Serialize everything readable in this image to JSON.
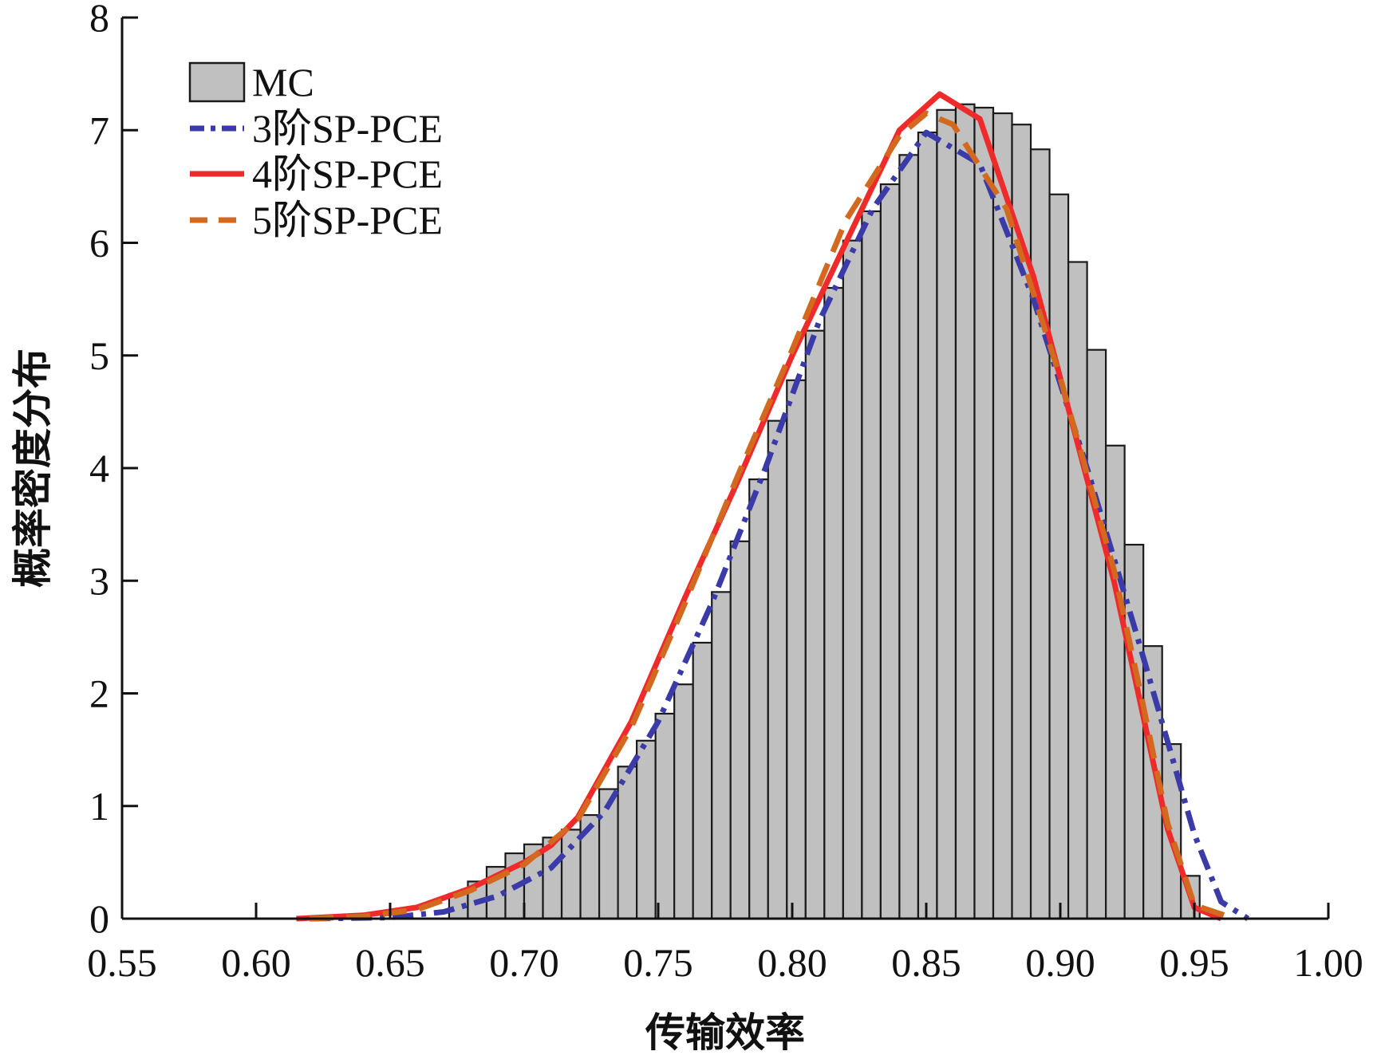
{
  "chart_data": {
    "type": "bar",
    "title": "",
    "xlabel": "传输效率",
    "ylabel": "概率密度分布",
    "xlim": [
      0.55,
      1.0
    ],
    "ylim": [
      0,
      8
    ],
    "xticks": [
      "0.55",
      "0.60",
      "0.65",
      "0.70",
      "0.75",
      "0.80",
      "0.85",
      "0.90",
      "0.95",
      "1.00"
    ],
    "xtick_values": [
      0.55,
      0.6,
      0.65,
      0.7,
      0.75,
      0.8,
      0.85,
      0.9,
      0.95,
      1.0
    ],
    "yticks": [
      "0",
      "1",
      "2",
      "3",
      "4",
      "5",
      "6",
      "7",
      "8"
    ],
    "ytick_values": [
      0,
      1,
      2,
      3,
      4,
      5,
      6,
      7,
      8
    ],
    "grid": false,
    "legend_position": "top-left",
    "histogram": {
      "name": "MC",
      "bin_width": 0.007,
      "color": "#c0c0c0",
      "bin_starts": [
        0.672,
        0.679,
        0.686,
        0.693,
        0.7,
        0.707,
        0.714,
        0.721,
        0.728,
        0.735,
        0.742,
        0.749,
        0.756,
        0.763,
        0.77,
        0.777,
        0.784,
        0.791,
        0.798,
        0.805,
        0.812,
        0.819,
        0.826,
        0.833,
        0.84,
        0.847,
        0.854,
        0.861,
        0.868,
        0.875,
        0.882,
        0.889,
        0.896,
        0.903,
        0.91,
        0.917,
        0.924,
        0.931,
        0.938,
        0.945
      ],
      "values": [
        0.22,
        0.33,
        0.46,
        0.58,
        0.66,
        0.72,
        0.79,
        0.92,
        1.15,
        1.35,
        1.58,
        1.82,
        2.08,
        2.45,
        2.9,
        3.35,
        3.9,
        4.42,
        4.78,
        5.22,
        5.6,
        6.02,
        6.28,
        6.52,
        6.78,
        6.98,
        7.18,
        7.23,
        7.2,
        7.15,
        7.05,
        6.83,
        6.43,
        5.83,
        5.05,
        4.2,
        3.32,
        2.42,
        1.55,
        0.38
      ]
    },
    "series": [
      {
        "name": "3阶SP-PCE",
        "color": "#3a3aa8",
        "style": "dash-dot",
        "x": [
          0.62,
          0.65,
          0.67,
          0.69,
          0.71,
          0.73,
          0.75,
          0.77,
          0.79,
          0.81,
          0.83,
          0.85,
          0.87,
          0.89,
          0.91,
          0.93,
          0.95,
          0.96,
          0.97
        ],
        "y": [
          0.0,
          0.01,
          0.06,
          0.2,
          0.45,
          0.95,
          1.75,
          2.8,
          4.0,
          5.3,
          6.3,
          6.98,
          6.7,
          5.5,
          4.0,
          2.4,
          0.75,
          0.15,
          0.0
        ]
      },
      {
        "name": "4阶SP-PCE",
        "color": "#ee2a2a",
        "style": "solid",
        "x": [
          0.615,
          0.64,
          0.66,
          0.68,
          0.7,
          0.71,
          0.72,
          0.74,
          0.76,
          0.78,
          0.8,
          0.82,
          0.84,
          0.855,
          0.87,
          0.89,
          0.91,
          0.92,
          0.93,
          0.94,
          0.95,
          0.96
        ],
        "y": [
          0.0,
          0.03,
          0.1,
          0.27,
          0.5,
          0.65,
          0.9,
          1.75,
          2.85,
          3.9,
          5.0,
          6.0,
          7.0,
          7.32,
          7.1,
          5.7,
          3.9,
          3.0,
          1.9,
          0.8,
          0.1,
          0.0
        ]
      },
      {
        "name": "5阶SP-PCE",
        "color": "#d2691e",
        "style": "dash",
        "x": [
          0.62,
          0.64,
          0.66,
          0.68,
          0.7,
          0.72,
          0.74,
          0.76,
          0.78,
          0.8,
          0.82,
          0.84,
          0.85,
          0.86,
          0.88,
          0.9,
          0.92,
          0.93,
          0.94,
          0.95,
          0.965
        ],
        "y": [
          0.0,
          0.02,
          0.08,
          0.25,
          0.48,
          0.88,
          1.7,
          2.8,
          3.95,
          5.05,
          6.2,
          6.95,
          7.15,
          7.05,
          6.3,
          4.8,
          3.1,
          2.0,
          0.85,
          0.12,
          0.0
        ]
      }
    ]
  }
}
